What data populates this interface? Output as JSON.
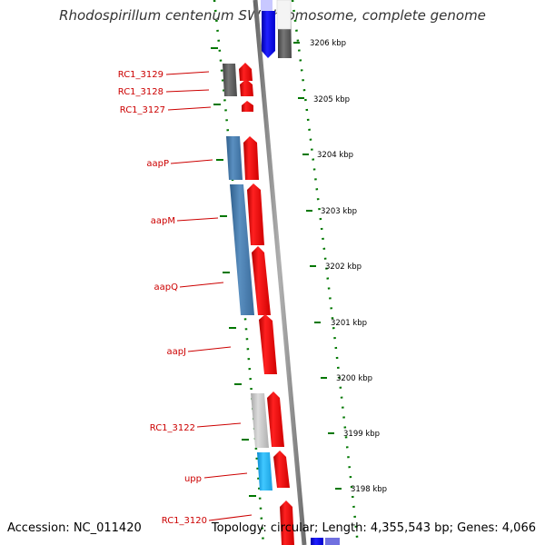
{
  "title": "Rhodospirillum centenum SW chromosome, complete genome",
  "footer": {
    "accession": "Accession: NC_011420",
    "stats": "Topology: circular; Length: 4,355,543 bp; Genes: 4,066"
  },
  "gene_labels": [
    "RC1_3129",
    "RC1_3128",
    "RC1_3127",
    "aapP",
    "aapM",
    "aapQ",
    "aapJ",
    "RC1_3122",
    "upp",
    "RC1_3120"
  ],
  "kbp_labels": [
    "3206 kbp",
    "3205 kbp",
    "3204 kbp",
    "3203 kbp",
    "3202 kbp",
    "3201 kbp",
    "3200 kbp",
    "3199 kbp",
    "3198 kbp"
  ],
  "colors": {
    "forward_gene": "#ff0000",
    "aap_genes": "#4682b4",
    "cog_dark": "#555555",
    "cog_light": "#c0c0c0",
    "upp": "#1eaef0",
    "top_blue": "#0000dd",
    "tick": "#007700",
    "backbone": "#888888",
    "label": "#cc0000"
  }
}
